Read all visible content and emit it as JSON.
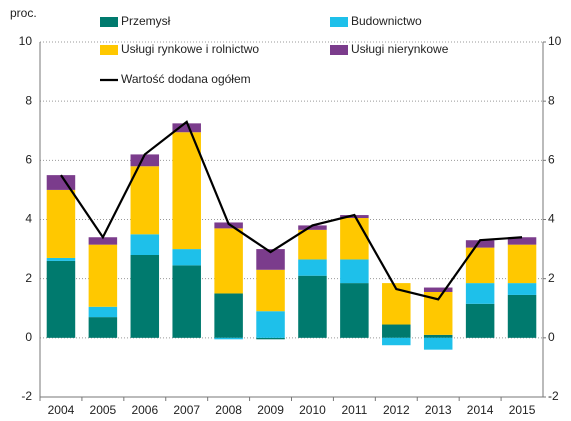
{
  "chart_data": {
    "type": "stacked-bar-line",
    "unit_label": "proc.",
    "categories": [
      "2004",
      "2005",
      "2006",
      "2007",
      "2008",
      "2009",
      "2010",
      "2011",
      "2012",
      "2013",
      "2014",
      "2015"
    ],
    "series": [
      {
        "name": "Przemysł",
        "color": "#007a6e",
        "values": [
          2.6,
          0.7,
          2.8,
          2.45,
          1.5,
          -0.05,
          2.1,
          1.85,
          0.45,
          0.1,
          1.15,
          1.45
        ]
      },
      {
        "name": "Budownictwo",
        "color": "#1ec0ea",
        "values": [
          0.1,
          0.35,
          0.7,
          0.55,
          -0.05,
          0.9,
          0.55,
          0.8,
          -0.25,
          -0.4,
          0.7,
          0.4
        ]
      },
      {
        "name": "Usługi rynkowe i rolnictwo",
        "color": "#ffc800",
        "values": [
          2.3,
          2.1,
          2.3,
          3.95,
          2.2,
          1.4,
          1.0,
          1.4,
          1.4,
          1.45,
          1.2,
          1.3
        ]
      },
      {
        "name": "Usługi nierynkowe",
        "color": "#7b3c8c",
        "values": [
          0.5,
          0.25,
          0.4,
          0.3,
          0.2,
          0.7,
          0.15,
          0.1,
          0,
          0.15,
          0.25,
          0.25
        ]
      },
      {
        "name": "Wartość dodana ogółem",
        "color": "#000000",
        "kind": "line",
        "values": [
          5.5,
          3.4,
          6.2,
          7.3,
          3.85,
          2.9,
          3.8,
          4.15,
          1.65,
          1.3,
          3.3,
          3.4
        ]
      }
    ],
    "ylim": [
      -2,
      10
    ],
    "yticks": [
      -2,
      0,
      2,
      4,
      6,
      8,
      10
    ],
    "y2lim": [
      -2,
      10
    ],
    "y2ticks": [
      -2,
      0,
      2,
      4,
      6,
      8,
      10
    ],
    "grid": true
  }
}
